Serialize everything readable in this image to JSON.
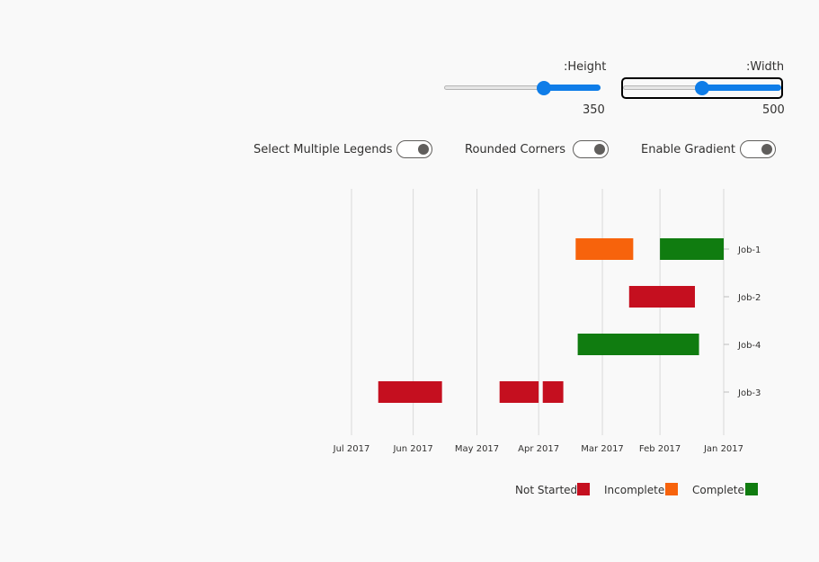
{
  "controls": {
    "height": {
      "label": ":Height",
      "value": "350",
      "min": 200,
      "max": 500,
      "current": 350
    },
    "width": {
      "label": ":Width",
      "value": "500",
      "min": 200,
      "max": 1000,
      "current": 500
    },
    "toggles": [
      {
        "label": "Select Multiple Legends",
        "on": true
      },
      {
        "label": "Rounded Corners",
        "on": true
      },
      {
        "label": "Enable Gradient",
        "on": true
      }
    ]
  },
  "chart_data": {
    "type": "bar",
    "orientation": "horizontal-gantt",
    "x_axis_direction": "right-to-left",
    "xlim": [
      "2016-12-22",
      "2017-07-09"
    ],
    "x_ticks": [
      {
        "label": "Jan 2017",
        "date": "2017-01-01"
      },
      {
        "label": "Feb 2017",
        "date": "2017-02-01"
      },
      {
        "label": "Mar 2017",
        "date": "2017-03-01"
      },
      {
        "label": "Apr 2017",
        "date": "2017-04-01"
      },
      {
        "label": "May 2017",
        "date": "2017-05-01"
      },
      {
        "label": "Jun 2017",
        "date": "2017-06-01"
      },
      {
        "label": "Jul 2017",
        "date": "2017-07-01"
      }
    ],
    "categories": [
      "Job-1",
      "Job-2",
      "Job-4",
      "Job-3"
    ],
    "series": [
      {
        "name": "Not Started",
        "color": "#c50f1f",
        "bars": [
          {
            "category": "Job-2",
            "start": "2017-01-15",
            "end": "2017-02-16"
          },
          {
            "category": "Job-3",
            "start": "2017-03-20",
            "end": "2017-03-30"
          },
          {
            "category": "Job-3",
            "start": "2017-04-01",
            "end": "2017-04-20"
          },
          {
            "category": "Job-3",
            "start": "2017-05-18",
            "end": "2017-06-18"
          }
        ]
      },
      {
        "name": "Incomplete",
        "color": "#f7630c",
        "bars": [
          {
            "category": "Job-1",
            "start": "2017-02-14",
            "end": "2017-03-14"
          }
        ]
      },
      {
        "name": "Complete",
        "color": "#107c10",
        "bars": [
          {
            "category": "Job-1",
            "start": "2017-01-01",
            "end": "2017-02-01"
          },
          {
            "category": "Job-4",
            "start": "2017-01-13",
            "end": "2017-03-13"
          }
        ]
      }
    ],
    "grid": true,
    "legend_position": "bottom-right"
  }
}
